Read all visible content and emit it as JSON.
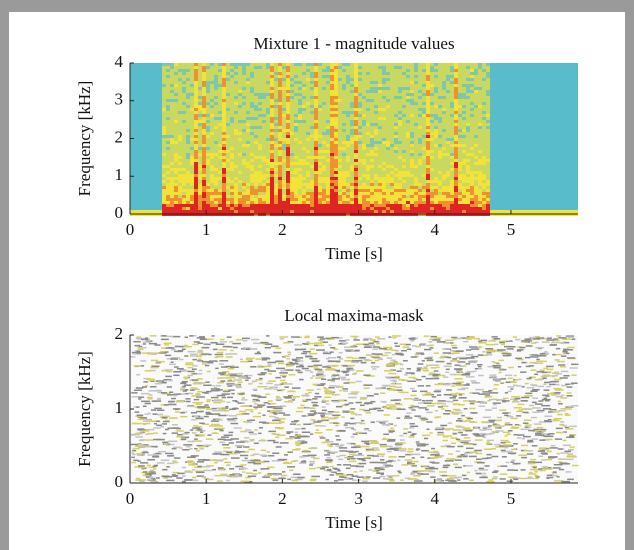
{
  "chart_data": [
    {
      "type": "heatmap",
      "title": "Mixture 1  - magnitude values",
      "x_label": "Time [s]",
      "y_label": "Frequency [kHz]",
      "xlim": [
        0,
        5.88
      ],
      "ylim": [
        0,
        4
      ],
      "xticks": [
        0,
        1,
        2,
        3,
        4,
        5
      ],
      "yticks": [
        0,
        1,
        2,
        3,
        4
      ]
    },
    {
      "type": "mask",
      "title": "Local maxima-mask",
      "x_label": "Time [s]",
      "y_label": "Frequency [kHz]",
      "xlim": [
        0,
        5.88
      ],
      "ylim": [
        0,
        2
      ],
      "xticks": [
        0,
        1,
        2,
        3,
        4,
        5
      ],
      "yticks": [
        0,
        1,
        2
      ]
    }
  ]
}
